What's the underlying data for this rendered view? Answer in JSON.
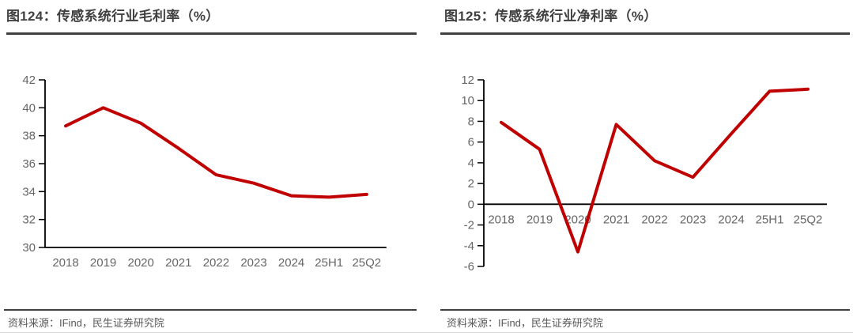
{
  "colors": {
    "line_red": "#C00000",
    "rule_dark": "#404040",
    "axis_black": "#000000",
    "tick_text_gray": "#666666",
    "source_text_gray": "#595959",
    "bottom_rule_gray": "#D9D9D9"
  },
  "chart_data": [
    {
      "type": "line",
      "title": "图124：传感系统行业毛利率（%）",
      "source": "资料来源：IFind，民生证券研究院",
      "categories": [
        "2018",
        "2019",
        "2020",
        "2021",
        "2022",
        "2023",
        "2024",
        "25H1",
        "25Q2"
      ],
      "values": [
        38.7,
        40.0,
        38.9,
        37.1,
        35.2,
        34.6,
        33.7,
        33.6,
        33.8
      ],
      "ylim": [
        30,
        42
      ],
      "ytick_step": 2,
      "ytick_labels": [
        "30",
        "32",
        "34",
        "36",
        "38",
        "40",
        "42"
      ],
      "category_axis_at": 30,
      "grid": false,
      "legend": "none",
      "line_color": "#C00000"
    },
    {
      "type": "line",
      "title": "图125：传感系统行业净利率（%）",
      "source": "资料来源：IFind，民生证券研究院",
      "categories": [
        "2018",
        "2019",
        "2020",
        "2021",
        "2022",
        "2023",
        "2024",
        "25H1",
        "25Q2"
      ],
      "values": [
        7.9,
        5.3,
        -4.6,
        7.7,
        4.2,
        2.6,
        6.8,
        10.9,
        11.1
      ],
      "ylim": [
        -6,
        12
      ],
      "ytick_step": 2,
      "ytick_labels": [
        "-6",
        "-4",
        "-2",
        "0",
        "2",
        "4",
        "6",
        "8",
        "10",
        "12"
      ],
      "category_axis_at": 0,
      "grid": false,
      "legend": "none",
      "line_color": "#C00000"
    }
  ]
}
